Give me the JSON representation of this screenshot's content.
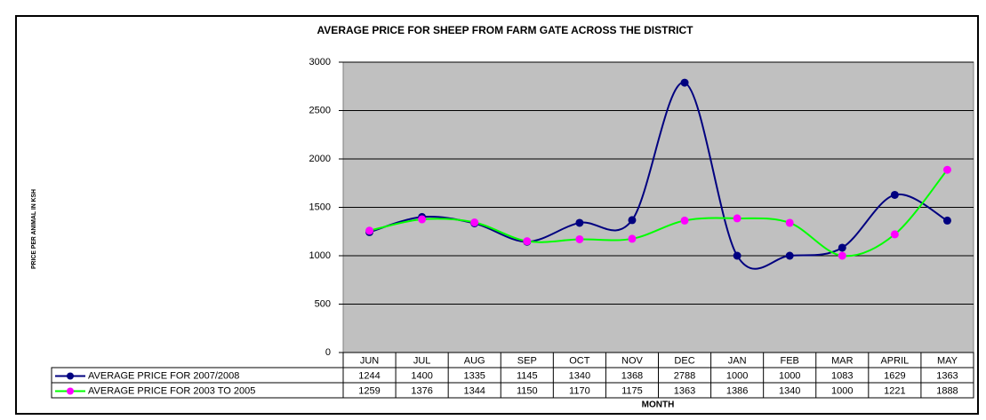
{
  "chart_data": {
    "type": "line",
    "title": "AVERAGE PRICE FOR SHEEP FROM FARM GATE ACROSS THE DISTRICT",
    "y_label": "PRICE PER ANIMAL IN KSH",
    "x_label": "MONTH",
    "categories": [
      "JUN",
      "JUL",
      "AUG",
      "SEP",
      "OCT",
      "NOV",
      "DEC",
      "JAN",
      "FEB",
      "MAR",
      "APRIL",
      "MAY"
    ],
    "series": [
      {
        "name": "AVERAGE PRICE FOR 2007/2008",
        "color": "#000080",
        "marker_color": "#000080",
        "values": [
          1244,
          1400,
          1335,
          1145,
          1340,
          1368,
          2788,
          1000,
          1000,
          1083,
          1629,
          1363
        ]
      },
      {
        "name": "AVERAGE PRICE FOR 2003 TO 2005",
        "color": "#00ff00",
        "marker_color": "#ff00ff",
        "values": [
          1259,
          1376,
          1344,
          1150,
          1170,
          1175,
          1363,
          1386,
          1340,
          1000,
          1221,
          1888
        ]
      }
    ],
    "ylim": [
      0,
      3000
    ],
    "yticks": [
      0,
      500,
      1000,
      1500,
      2000,
      2500,
      3000
    ],
    "grid": true,
    "smooth": true
  }
}
